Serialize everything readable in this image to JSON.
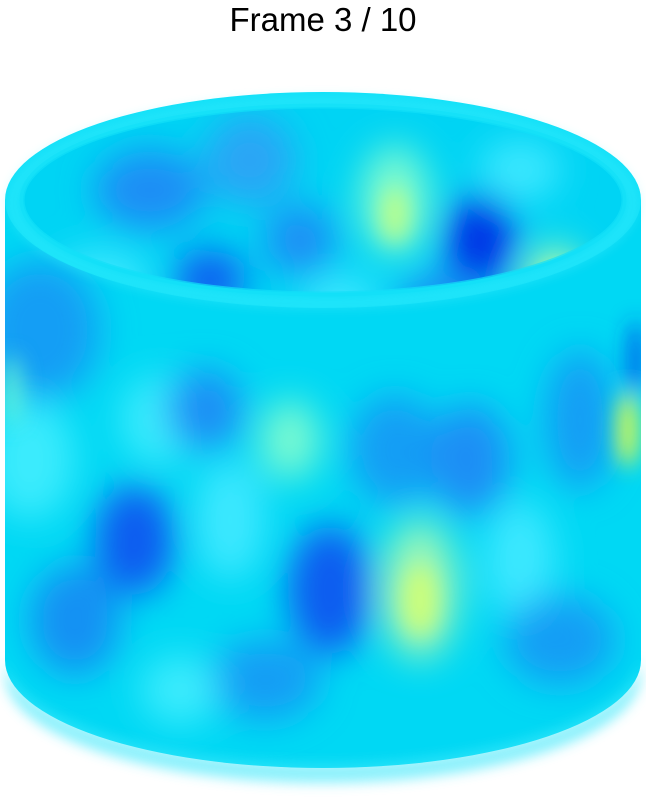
{
  "title": "Frame 3 / 10",
  "colormap": {
    "background": "#00d8f4",
    "rim": "#0fe2f8",
    "deep_blue": "#0033e6",
    "blue": "#0a5cf0",
    "mid_blue": "#1a8ef5",
    "cyan": "#00e5ff",
    "light_cyan": "#4af0ff",
    "green_cyan": "#7cfad0",
    "yellow": "#e8ff5a"
  }
}
